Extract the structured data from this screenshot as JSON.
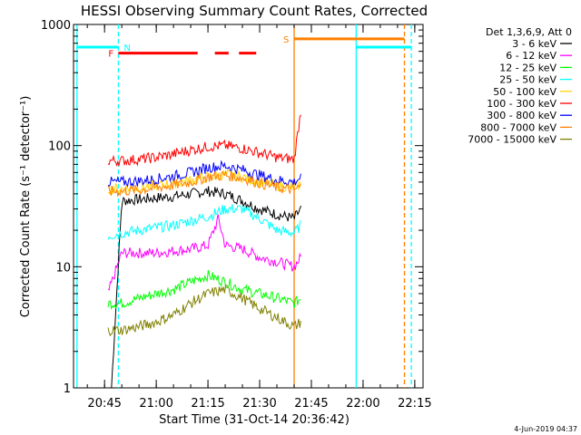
{
  "chart_data": {
    "type": "line",
    "title": "HESSI Observing Summary Count Rates, Corrected",
    "xlabel": "Start Time (31-Oct-14 20:36:42)",
    "ylabel": "Corrected Count Rate (s⁻¹ detector⁻¹)",
    "yscale": "log",
    "ylim": [
      1,
      1000
    ],
    "xlim_minutes": [
      20.6,
      22.29
    ],
    "x_ticks": [
      "20:45",
      "21:00",
      "21:15",
      "21:30",
      "21:45",
      "22:00",
      "22:15"
    ],
    "y_ticks": [
      "1",
      "10",
      "100",
      "1000"
    ],
    "footer_date": "4-Jun-2019 04:37",
    "legend_placement": "top-right, outside plot",
    "legend_title": "Det 1,3,6,9, Att 0",
    "series": [
      {
        "name": "3 - 6 keV",
        "color": "#000000",
        "x": [
          "20:47",
          "20:50",
          "20:55",
          "21:00",
          "21:05",
          "21:10",
          "21:15",
          "21:20",
          "21:25",
          "21:30",
          "21:35",
          "21:40",
          "21:42"
        ],
        "values": [
          1,
          35,
          36,
          37,
          38,
          40,
          42,
          40,
          35,
          30,
          27,
          25,
          30
        ]
      },
      {
        "name": "6 - 12 keV",
        "color": "#ff00ff",
        "x": [
          "20:46",
          "20:50",
          "20:55",
          "21:00",
          "21:05",
          "21:10",
          "21:15",
          "21:18",
          "21:20",
          "21:25",
          "21:30",
          "21:35",
          "21:40",
          "21:42"
        ],
        "values": [
          6,
          13,
          13,
          13,
          13.5,
          14,
          15,
          25,
          15,
          14,
          12,
          11,
          10,
          12
        ]
      },
      {
        "name": "12 - 25 keV",
        "color": "#00ff00",
        "x": [
          "20:46",
          "20:50",
          "20:55",
          "21:00",
          "21:05",
          "21:10",
          "21:15",
          "21:20",
          "21:25",
          "21:30",
          "21:35",
          "21:40",
          "21:42"
        ],
        "values": [
          5,
          5,
          5.5,
          6,
          6.5,
          7.5,
          8.5,
          7.5,
          6.5,
          6,
          5.5,
          5,
          5.5
        ]
      },
      {
        "name": "25 - 50 keV",
        "color": "#00ffff",
        "x": [
          "20:46",
          "20:50",
          "20:55",
          "21:00",
          "21:05",
          "21:10",
          "21:15",
          "21:20",
          "21:25",
          "21:30",
          "21:35",
          "21:40",
          "21:42"
        ],
        "values": [
          18,
          19,
          20,
          21,
          22,
          24,
          26,
          30,
          30,
          25,
          20,
          19,
          22
        ]
      },
      {
        "name": "50 - 100 keV",
        "color": "#ffd400",
        "x": [
          "20:46",
          "20:50",
          "20:55",
          "21:00",
          "21:05",
          "21:10",
          "21:15",
          "21:20",
          "21:25",
          "21:30",
          "21:35",
          "21:40",
          "21:42"
        ],
        "values": [
          44,
          44,
          45,
          47,
          49,
          52,
          55,
          58,
          55,
          50,
          47,
          45,
          48
        ]
      },
      {
        "name": "100 - 300 keV",
        "color": "#ff0000",
        "x": [
          "20:46",
          "20:50",
          "20:55",
          "21:00",
          "21:05",
          "21:10",
          "21:15",
          "21:20",
          "21:25",
          "21:30",
          "21:35",
          "21:40",
          "21:42"
        ],
        "values": [
          75,
          75,
          77,
          80,
          85,
          92,
          98,
          100,
          95,
          87,
          80,
          77,
          200
        ]
      },
      {
        "name": "300 - 800 keV",
        "color": "#0000ff",
        "x": [
          "20:46",
          "20:50",
          "20:55",
          "21:00",
          "21:05",
          "21:10",
          "21:15",
          "21:20",
          "21:25",
          "21:30",
          "21:35",
          "21:40",
          "21:42"
        ],
        "values": [
          50,
          50,
          51,
          53,
          56,
          60,
          66,
          68,
          63,
          57,
          52,
          50,
          55
        ]
      },
      {
        "name": "800 - 7000 keV",
        "color": "#ff8000",
        "x": [
          "20:46",
          "20:50",
          "20:55",
          "21:00",
          "21:05",
          "21:10",
          "21:15",
          "21:20",
          "21:25",
          "21:30",
          "21:35",
          "21:40",
          "21:42"
        ],
        "values": [
          42,
          42,
          43,
          45,
          47,
          50,
          55,
          57,
          54,
          49,
          45,
          43,
          46
        ]
      },
      {
        "name": "7000 - 15000 keV",
        "color": "#808000",
        "x": [
          "20:46",
          "20:50",
          "20:55",
          "21:00",
          "21:05",
          "21:10",
          "21:15",
          "21:20",
          "21:25",
          "21:30",
          "21:35",
          "21:40",
          "21:42"
        ],
        "values": [
          3,
          3,
          3.2,
          3.5,
          4,
          5,
          6,
          6.5,
          5.5,
          4.5,
          3.8,
          3.2,
          3.5
        ]
      }
    ],
    "markers": [
      {
        "label": "N",
        "color": "#00ffff"
      },
      {
        "label": "F",
        "color": "#ff0000"
      },
      {
        "label": "S",
        "color": "#ff8000"
      }
    ],
    "status_bars": [
      {
        "name": "night",
        "color": "#00ffff",
        "y": 650,
        "ranges": [
          [
            "20:37",
            "20:49"
          ],
          [
            "21:58",
            "22:14"
          ]
        ]
      },
      {
        "name": "flare",
        "color": "#ff0000",
        "y": 580,
        "ranges": [
          [
            "20:49",
            "21:12"
          ],
          [
            "21:17",
            "21:21"
          ],
          [
            "21:24",
            "21:29"
          ]
        ]
      },
      {
        "name": "saa",
        "color": "#ff8000",
        "y": 760,
        "ranges": [
          [
            "21:40",
            "22:12"
          ]
        ]
      }
    ],
    "vertical_lines": [
      {
        "x": "20:37",
        "color": "#00ffff",
        "style": "solid"
      },
      {
        "x": "20:49",
        "color": "#00ffff",
        "style": "dashed"
      },
      {
        "x": "21:40",
        "color": "#ff8000",
        "style": "solid"
      },
      {
        "x": "21:58",
        "color": "#00ffff",
        "style": "solid"
      },
      {
        "x": "22:12",
        "color": "#ff8000",
        "style": "dashed"
      },
      {
        "x": "22:14",
        "color": "#00ffff",
        "style": "dashed"
      }
    ]
  }
}
